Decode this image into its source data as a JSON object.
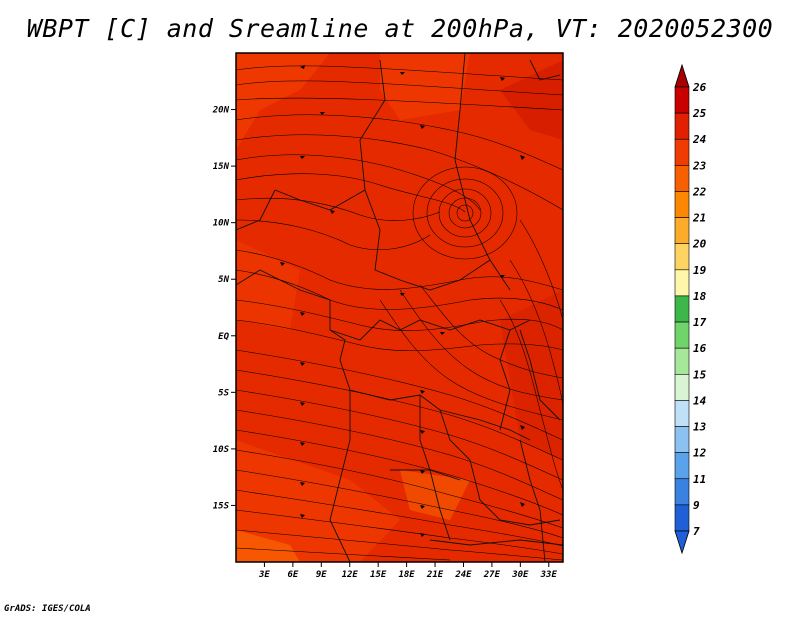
{
  "title": "WBPT [C] and Sreamline at 200hPa, VT: 2020052300",
  "footer": "GrADS: IGES/COLA",
  "map": {
    "lat_labels": [
      "20N",
      "15N",
      "10N",
      "5N",
      "EQ",
      "5S",
      "10S",
      "15S"
    ],
    "lat_values": [
      20,
      15,
      10,
      5,
      0,
      -5,
      -10,
      -15
    ],
    "lon_labels": [
      "3E",
      "6E",
      "9E",
      "12E",
      "15E",
      "18E",
      "21E",
      "24E",
      "27E",
      "30E",
      "33E"
    ],
    "lon_values": [
      3,
      6,
      9,
      12,
      15,
      18,
      21,
      24,
      27,
      30,
      33
    ],
    "lon_range": [
      0,
      34.5
    ],
    "lat_range": [
      -20,
      25
    ]
  },
  "colorbar": {
    "labels": [
      "26",
      "25",
      "24",
      "23",
      "22",
      "21",
      "20",
      "19",
      "18",
      "17",
      "16",
      "15",
      "14",
      "13",
      "12",
      "11",
      "9",
      "7"
    ],
    "colors": [
      "#a50000",
      "#c80000",
      "#e02000",
      "#f03c00",
      "#f76000",
      "#fb8800",
      "#fdab2a",
      "#fdd463",
      "#fef6a8",
      "#3cb84a",
      "#6fd46a",
      "#a6e89a",
      "#d8f4d2",
      "#bfe0f7",
      "#8cc2f2",
      "#5aa2ec",
      "#3a82e2",
      "#1f5fd8"
    ]
  }
}
